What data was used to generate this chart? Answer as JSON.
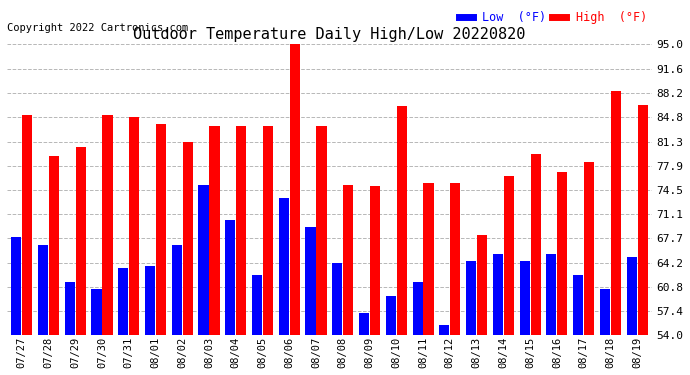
{
  "title": "Outdoor Temperature Daily High/Low 20220820",
  "copyright": "Copyright 2022 Cartronics.com",
  "categories": [
    "07/27",
    "07/28",
    "07/29",
    "07/30",
    "07/31",
    "08/01",
    "08/02",
    "08/03",
    "08/04",
    "08/05",
    "08/06",
    "08/07",
    "08/08",
    "08/09",
    "08/10",
    "08/11",
    "08/12",
    "08/13",
    "08/14",
    "08/15",
    "08/16",
    "08/17",
    "08/18",
    "08/19"
  ],
  "high_values": [
    85.0,
    79.3,
    80.5,
    85.0,
    84.8,
    83.8,
    81.3,
    83.5,
    83.5,
    83.5,
    95.0,
    83.5,
    75.2,
    75.0,
    86.3,
    75.5,
    75.5,
    68.2,
    76.5,
    79.5,
    77.0,
    78.5,
    88.5,
    86.5
  ],
  "low_values": [
    67.8,
    66.8,
    61.5,
    60.5,
    63.5,
    63.8,
    66.7,
    75.2,
    70.3,
    62.5,
    73.3,
    69.3,
    64.2,
    57.2,
    59.5,
    61.5,
    55.5,
    64.5,
    65.5,
    64.5,
    65.5,
    62.5,
    60.5,
    65.0
  ],
  "ymin": 54.0,
  "ymax": 95.0,
  "yticks": [
    54.0,
    57.4,
    60.8,
    64.2,
    67.7,
    71.1,
    74.5,
    77.9,
    81.3,
    84.8,
    88.2,
    91.6,
    95.0
  ],
  "bar_color_high": "#ff0000",
  "bar_color_low": "#0000ff",
  "background_color": "#ffffff",
  "grid_color": "#b0b0b0",
  "title_fontsize": 11,
  "copyright_fontsize": 7.5,
  "legend_low_color": "#0000ff",
  "legend_high_color": "#ff0000",
  "legend_low_label": "Low  (°F)",
  "legend_high_label": "High  (°F)"
}
